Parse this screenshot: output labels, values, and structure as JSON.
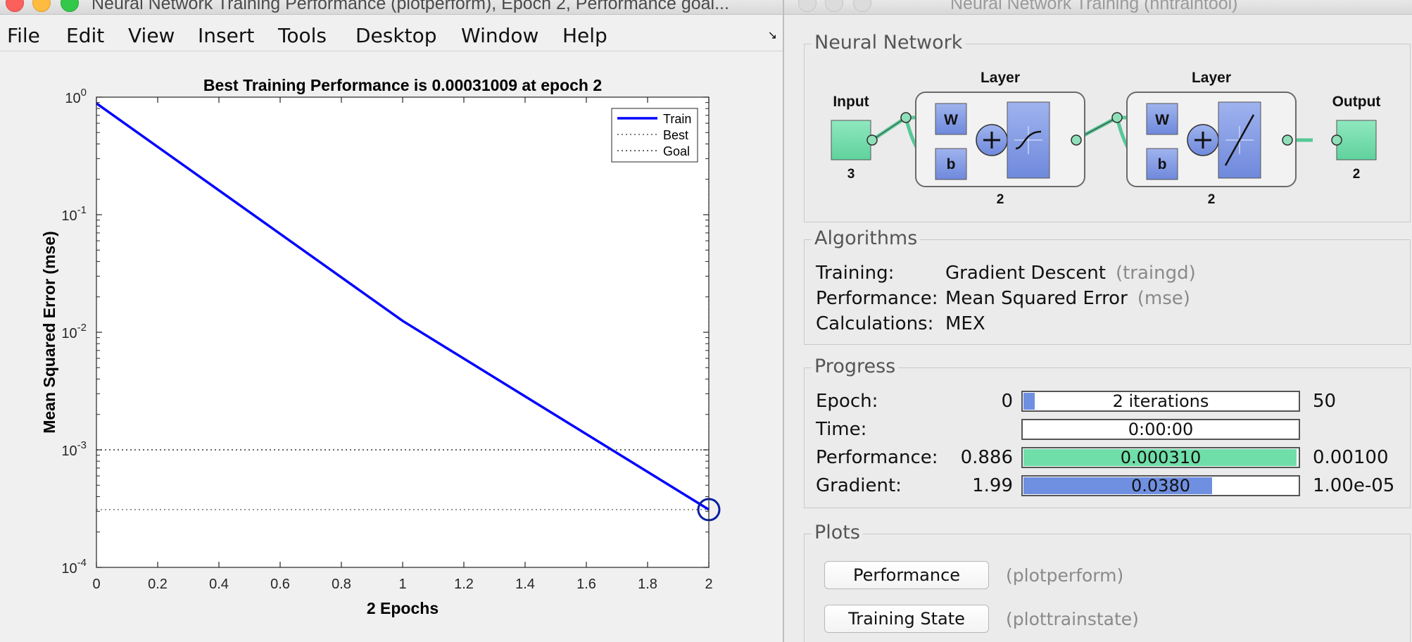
{
  "left_window": {
    "title": "Neural Network Training Performance (plotperform), Epoch 2, Performance goal...",
    "menu": [
      "File",
      "Edit",
      "View",
      "Insert",
      "Tools",
      "Desktop",
      "Window",
      "Help"
    ],
    "dock_icon": "dock-arrow-icon"
  },
  "chart_data": {
    "type": "line",
    "title": "Best Training Performance is 0.00031009 at epoch 2",
    "xlabel": "2 Epochs",
    "ylabel": "Mean Squared Error  (mse)",
    "xlim": [
      0,
      2
    ],
    "ylim": [
      0.0001,
      1
    ],
    "yscale": "log",
    "x_ticks": [
      "0",
      "0.2",
      "0.4",
      "0.6",
      "0.8",
      "1",
      "1.2",
      "1.4",
      "1.6",
      "1.8",
      "2"
    ],
    "y_ticks": [
      {
        "base": "10",
        "exp": "0"
      },
      {
        "base": "10",
        "exp": "-1"
      },
      {
        "base": "10",
        "exp": "-2"
      },
      {
        "base": "10",
        "exp": "-3"
      },
      {
        "base": "10",
        "exp": "-4"
      }
    ],
    "series": [
      {
        "name": "Train",
        "style": "solid",
        "color": "#0000ff",
        "x": [
          0,
          1,
          2
        ],
        "y": [
          0.886,
          0.0125,
          0.00031009
        ]
      },
      {
        "name": "Best",
        "style": "dotted",
        "color": "#666666",
        "x": [
          0,
          2
        ],
        "y": [
          0.00031009,
          0.00031009
        ]
      },
      {
        "name": "Goal",
        "style": "dotted",
        "color": "#333333",
        "x": [
          0,
          2
        ],
        "y": [
          0.001,
          0.001
        ]
      }
    ],
    "best_marker": {
      "x": 2,
      "y": 0.00031009
    },
    "legend_position": "top-right"
  },
  "right_window": {
    "title": "Neural Network Training (nntraintool)",
    "network": {
      "panel_title": "Neural Network",
      "input_label": "Input",
      "input_size": "3",
      "layer1_label": "Layer",
      "layer1_size": "2",
      "layer2_label": "Layer",
      "layer2_size": "2",
      "output_label": "Output",
      "output_size": "2",
      "weight_label": "W",
      "bias_label": "b"
    },
    "algorithms": {
      "panel_title": "Algorithms",
      "rows": [
        {
          "label": "Training:",
          "value": "Gradient Descent",
          "paren": "(traingd)"
        },
        {
          "label": "Performance:",
          "value": "Mean Squared Error",
          "paren": "(mse)"
        },
        {
          "label": "Calculations:",
          "value": "MEX",
          "paren": ""
        }
      ]
    },
    "progress": {
      "panel_title": "Progress",
      "rows": [
        {
          "label": "Epoch:",
          "min": "0",
          "bar_text": "2 iterations",
          "max": "50",
          "fill": 0.04,
          "color": "#6f8fe0"
        },
        {
          "label": "Time:",
          "min": "",
          "bar_text": "0:00:00",
          "max": "",
          "fill": 0.0,
          "color": "#6f8fe0"
        },
        {
          "label": "Performance:",
          "min": "0.886",
          "bar_text": "0.000310",
          "max": "0.00100",
          "fill": 1.0,
          "color": "#6fdea8"
        },
        {
          "label": "Gradient:",
          "min": "1.99",
          "bar_text": "0.0380",
          "max": "1.00e-05",
          "fill": 0.69,
          "color": "#6f8fe0"
        }
      ]
    },
    "plots": {
      "panel_title": "Plots",
      "buttons": [
        {
          "label": "Performance",
          "paren": "(plotperform)"
        },
        {
          "label": "Training State",
          "paren": "(plottrainstate)"
        }
      ]
    }
  }
}
